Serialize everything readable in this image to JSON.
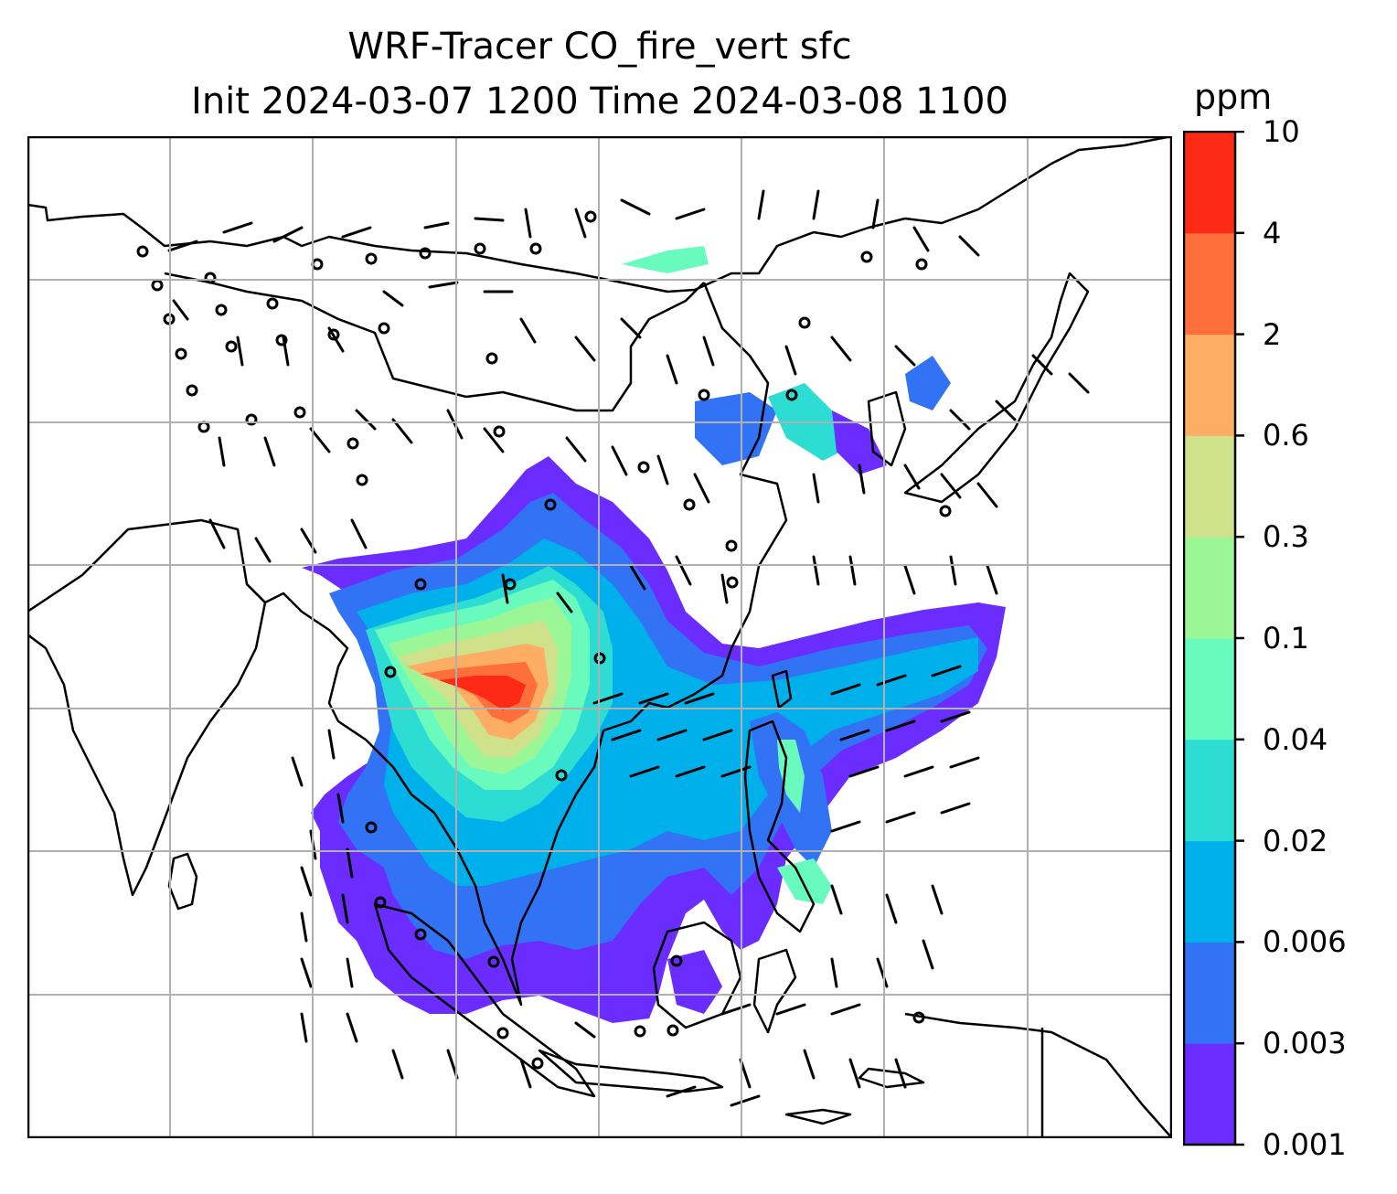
{
  "title": {
    "line1": "WRF-Tracer CO_fire_vert sfc",
    "line2": "Init 2024-03-07 1200 Time 2024-03-08 1100"
  },
  "colorbar": {
    "units": "ppm",
    "levels": [
      "0.001",
      "0.003",
      "0.006",
      "0.02",
      "0.04",
      "0.1",
      "0.3",
      "0.6",
      "2",
      "4",
      "10"
    ],
    "colors": [
      "#6a2cff",
      "#3272f4",
      "#00b0ea",
      "#2ddcd2",
      "#69fbbe",
      "#9bf796",
      "#cfe18a",
      "#fdad64",
      "#ff6f3c",
      "#ff2a16"
    ]
  },
  "map": {
    "gridlines": true,
    "land_outline_color": "#000000",
    "grid_color": "#b0b0b0"
  }
}
